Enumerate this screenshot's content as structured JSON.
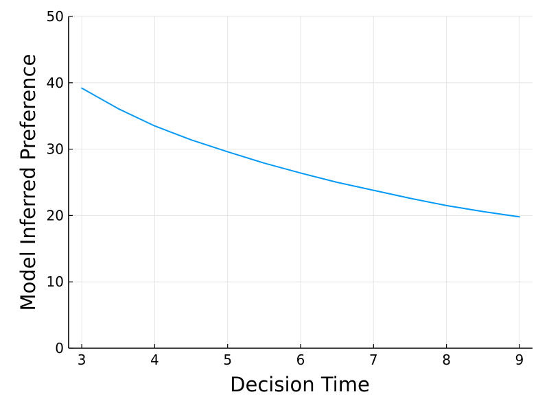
{
  "chart_data": {
    "type": "line",
    "xlabel": "Decision Time",
    "ylabel": "Model Inferred Preference",
    "xlim": [
      2.82,
      9.18
    ],
    "ylim": [
      0,
      50
    ],
    "x_ticks": [
      3,
      4,
      5,
      6,
      7,
      8,
      9
    ],
    "y_ticks": [
      0,
      10,
      20,
      30,
      40,
      50
    ],
    "grid": true,
    "legend": "none",
    "series": [
      {
        "color": "#009AFA",
        "x": [
          3.0,
          3.5,
          4.0,
          4.5,
          5.0,
          5.5,
          6.0,
          6.5,
          7.0,
          7.5,
          8.0,
          8.5,
          9.0
        ],
        "y": [
          39.2,
          36.1,
          33.5,
          31.4,
          29.6,
          27.9,
          26.4,
          25.0,
          23.8,
          22.6,
          21.5,
          20.6,
          19.8
        ]
      }
    ]
  }
}
